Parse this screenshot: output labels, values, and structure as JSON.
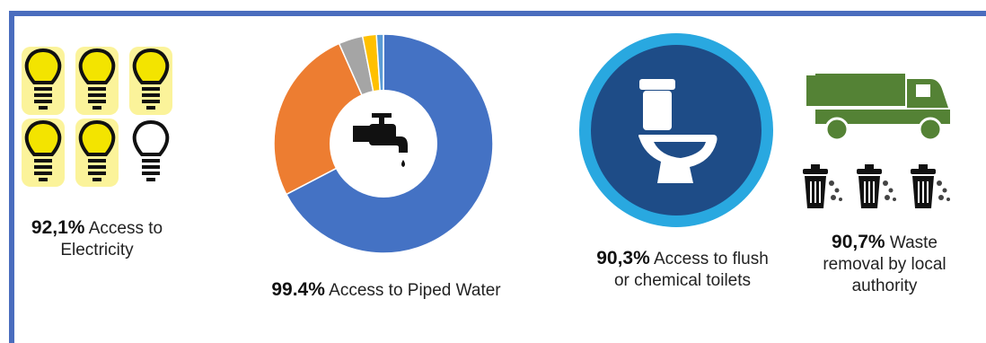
{
  "electricity": {
    "value": "92,1%",
    "label_line1": "Access to",
    "label_line2": "Electricity",
    "bulbs_lit": 5,
    "bulbs_total": 6,
    "lit_color": "#f3e400",
    "glow_color": "#fbf39a"
  },
  "water": {
    "value": "99.4%",
    "label": "Access to Piped Water",
    "chart_data": {
      "type": "pie",
      "values": [
        66.0,
        25.5,
        3.5,
        2.0,
        1.0
      ],
      "colors": [
        "#4472c4",
        "#ed7d31",
        "#a5a5a5",
        "#ffc000",
        "#5b9bd5"
      ]
    }
  },
  "toilets": {
    "value": "90,3%",
    "label_line1": "Access to flush",
    "label_line2": "or chemical toilets",
    "ring_color": "#29a8e0",
    "inner_color": "#1e4c87"
  },
  "waste": {
    "value": "90,7%",
    "label_line1": "Waste",
    "label_line2": "removal by local",
    "label_line3": "authority",
    "truck_color": "#548235"
  }
}
